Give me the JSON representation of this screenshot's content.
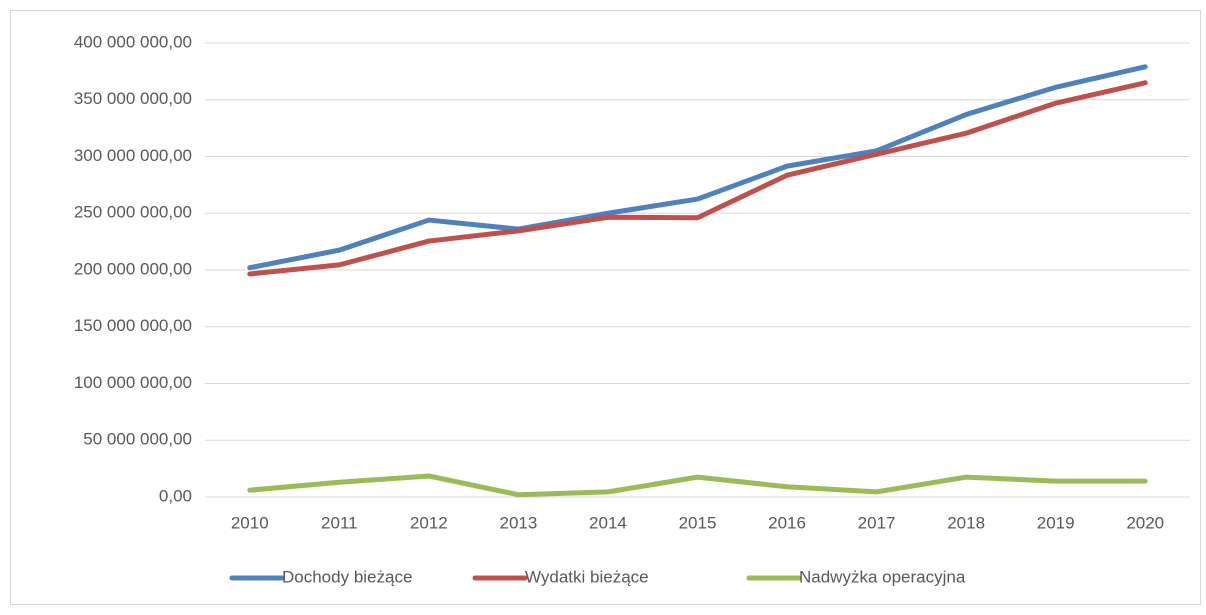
{
  "chart_data": {
    "type": "line",
    "categories": [
      "2010",
      "2011",
      "2012",
      "2013",
      "2014",
      "2015",
      "2016",
      "2017",
      "2018",
      "2019",
      "2020"
    ],
    "series": [
      {
        "name": "Dochody bieżące",
        "color": "#4f81bd",
        "values": [
          202000000,
          217500000,
          244000000,
          236000000,
          250000000,
          262500000,
          291500000,
          305000000,
          337000000,
          361000000,
          379000000
        ]
      },
      {
        "name": "Wydatki bieżące",
        "color": "#c0504d",
        "values": [
          196500000,
          204500000,
          225500000,
          234500000,
          246500000,
          246000000,
          283500000,
          302000000,
          320500000,
          347000000,
          365000000
        ]
      },
      {
        "name": "Nadwyżka operacyjna",
        "color": "#9bbb59",
        "values": [
          6000000,
          13000000,
          18500000,
          2000000,
          4500000,
          17500000,
          9000000,
          4500000,
          17500000,
          14000000,
          14000000
        ]
      }
    ],
    "ylim": [
      0,
      400000000
    ],
    "yticks": [
      {
        "value": 0,
        "label": "0,00"
      },
      {
        "value": 50000000,
        "label": "50 000 000,00"
      },
      {
        "value": 100000000,
        "label": "100 000 000,00"
      },
      {
        "value": 150000000,
        "label": "150 000 000,00"
      },
      {
        "value": 200000000,
        "label": "200 000 000,00"
      },
      {
        "value": 250000000,
        "label": "250 000 000,00"
      },
      {
        "value": 300000000,
        "label": "300 000 000,00"
      },
      {
        "value": 350000000,
        "label": "350 000 000,00"
      },
      {
        "value": 400000000,
        "label": "400 000 000,00"
      }
    ],
    "grid": true,
    "legend": "bottom"
  }
}
